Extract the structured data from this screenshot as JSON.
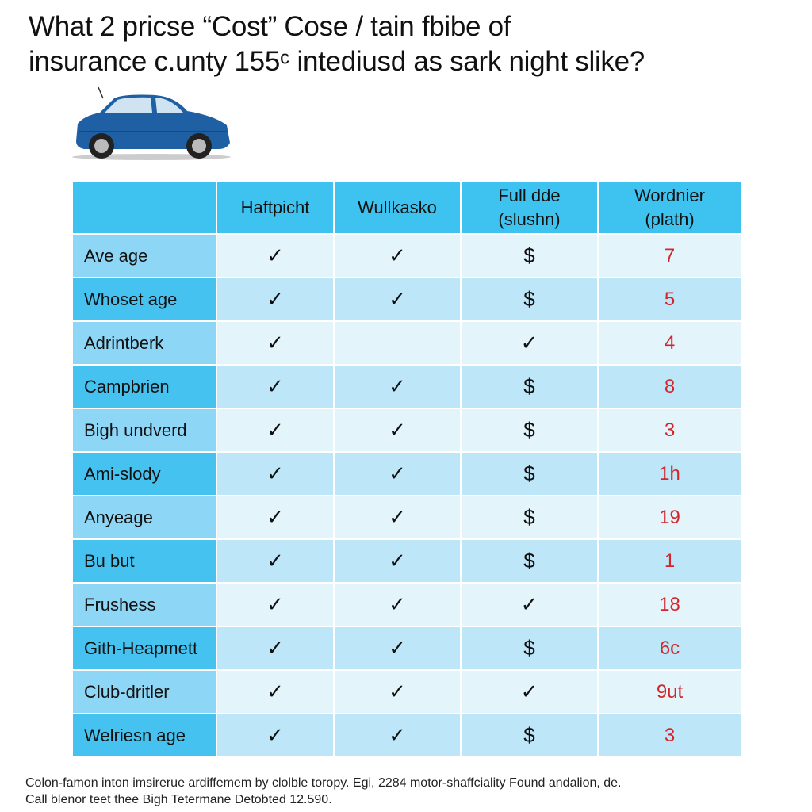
{
  "title": {
    "lines": [
      "What 2 pricse “Cost” Cose / tain fbibe of",
      "insurance c.unty 155ᶜ intediusd as sark night slike?"
    ]
  },
  "table": {
    "header": [
      null,
      [
        "Haftpicht"
      ],
      [
        "Wullkasko"
      ],
      [
        "Full dde",
        "(slushn)"
      ],
      [
        "Wordnier",
        "(plath)"
      ]
    ],
    "rows": [
      [
        "Ave age",
        "✓",
        "✓",
        "$",
        "7"
      ],
      [
        "Whoset age",
        "✓",
        "✓",
        "$",
        "5"
      ],
      [
        "Adrintberk",
        "✓",
        null,
        "✓",
        "4"
      ],
      [
        "Campbrien",
        "✓",
        "✓",
        "$",
        "8"
      ],
      [
        "Bigh undverd",
        "✓",
        "✓",
        "$",
        "3"
      ],
      [
        "Ami-slody",
        "✓",
        "✓",
        "$",
        "1h"
      ],
      [
        "Anyeage",
        "✓",
        "✓",
        "$",
        "19"
      ],
      [
        "Bu but",
        "✓",
        "✓",
        "$",
        "1"
      ],
      [
        "Frushess",
        "✓",
        "✓",
        "✓",
        "18"
      ],
      [
        "Gith-Heapmett",
        "✓",
        "✓",
        "$",
        "6c"
      ],
      [
        "Club-dritler",
        "✓",
        "✓",
        "✓",
        "9ut"
      ],
      [
        "Welriesn age",
        "✓",
        "✓",
        "$",
        "3"
      ]
    ]
  },
  "footer": {
    "lines": [
      "Colon-famon inton imsirerue ardiffemem by clolble toropy. Egi, 2284 motor-shaffciality Found andalion, de.",
      "Call blenor teet thee Bigh Tetermane Detobted 12.590."
    ]
  }
}
